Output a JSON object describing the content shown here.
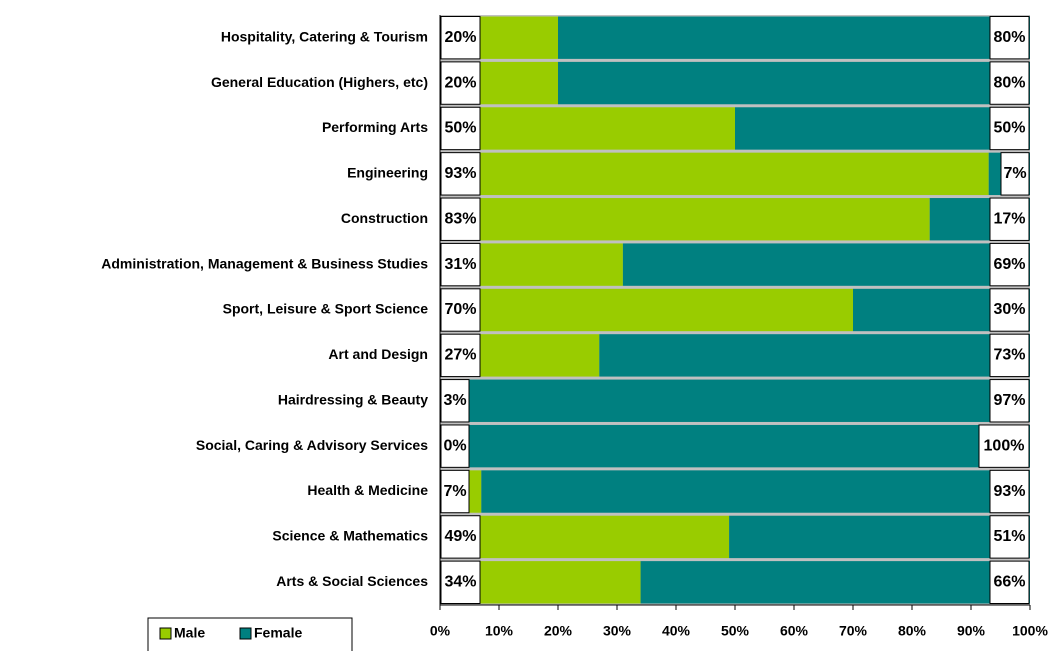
{
  "chart_data": {
    "type": "stacked_barh",
    "categories": [
      "Hospitality, Catering & Tourism",
      "General Education (Highers, etc)",
      "Performing Arts",
      "Engineering",
      "Construction",
      "Administration, Management  & Business Studies",
      "Sport, Leisure & Sport Science",
      "Art and Design",
      "Hairdressing & Beauty",
      "Social, Caring & Advisory Services",
      "Health & Medicine",
      "Science & Mathematics",
      "Arts & Social Sciences"
    ],
    "series": [
      {
        "name": "Male",
        "color": "#99cc00",
        "values": [
          20,
          20,
          50,
          93,
          83,
          31,
          70,
          27,
          3,
          0,
          7,
          49,
          34
        ],
        "value_labels": [
          "20%",
          "20%",
          "50%",
          "93%",
          "83%",
          "31%",
          "70%",
          "27%",
          "3%",
          "0%",
          "7%",
          "49%",
          "34%"
        ]
      },
      {
        "name": "Female",
        "color": "#008080",
        "values": [
          80,
          80,
          50,
          7,
          17,
          69,
          30,
          73,
          97,
          100,
          93,
          51,
          66
        ],
        "value_labels": [
          "80%",
          "80%",
          "50%",
          "7%",
          "17%",
          "69%",
          "30%",
          "73%",
          "97%",
          "100%",
          "93%",
          "51%",
          "66%"
        ]
      }
    ],
    "xlim": [
      0,
      100
    ],
    "xticks": [
      {
        "value": 0,
        "label": "0%"
      },
      {
        "value": 10,
        "label": "10%"
      },
      {
        "value": 20,
        "label": "20%"
      },
      {
        "value": 30,
        "label": "30%"
      },
      {
        "value": 40,
        "label": "40%"
      },
      {
        "value": 50,
        "label": "50%"
      },
      {
        "value": 60,
        "label": "60%"
      },
      {
        "value": 70,
        "label": "70%"
      },
      {
        "value": 80,
        "label": "80%"
      },
      {
        "value": 90,
        "label": "90%"
      },
      {
        "value": 100,
        "label": "100%"
      }
    ],
    "legend": "bottom-left"
  }
}
